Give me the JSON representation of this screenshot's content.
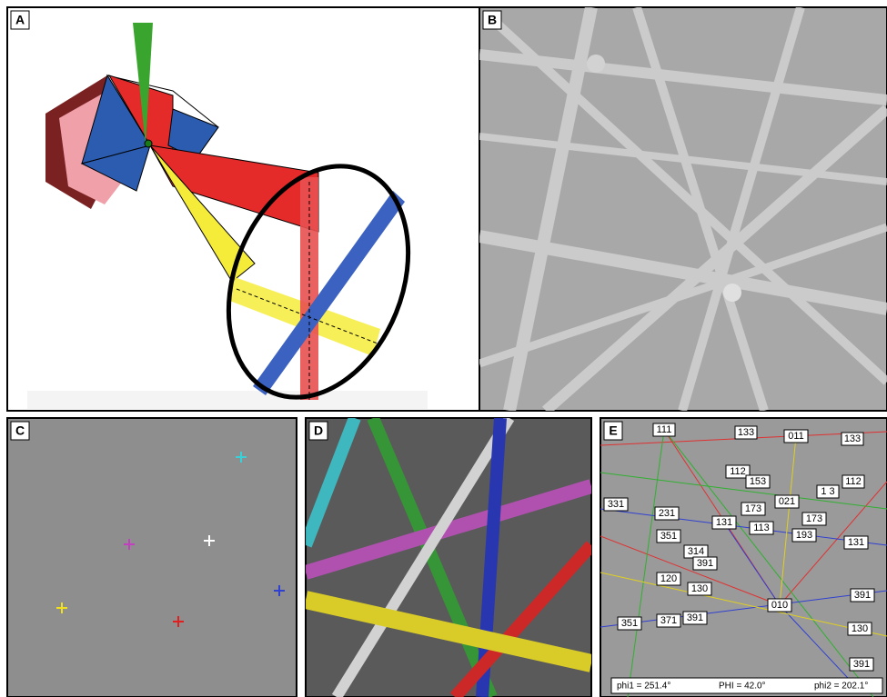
{
  "panels": {
    "a": "A",
    "b": "B",
    "c": "C",
    "d": "D",
    "e": "E"
  },
  "indexing": {
    "labels": [
      "111",
      "133",
      "011",
      "133",
      "112",
      "153",
      "1 3",
      "112",
      "331",
      "231",
      "021",
      "173",
      "173",
      "131",
      "113",
      "193",
      "131",
      "351",
      "314",
      "391",
      "120",
      "130",
      "010",
      "391",
      "351",
      "371",
      "391",
      "130",
      "391"
    ],
    "footer": {
      "phi1": "phi1 = 251.4°",
      "PHI": "PHI = 42.0°",
      "phi2": "phi2 = 202.1°"
    }
  }
}
